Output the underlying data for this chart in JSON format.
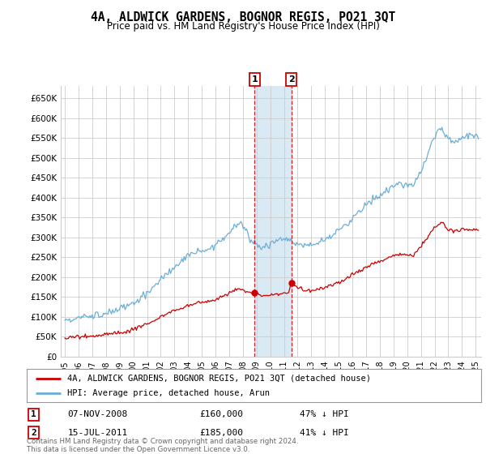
{
  "title": "4A, ALDWICK GARDENS, BOGNOR REGIS, PO21 3QT",
  "subtitle": "Price paid vs. HM Land Registry's House Price Index (HPI)",
  "ylabel_ticks": [
    "£0",
    "£50K",
    "£100K",
    "£150K",
    "£200K",
    "£250K",
    "£300K",
    "£350K",
    "£400K",
    "£450K",
    "£500K",
    "£550K",
    "£600K",
    "£650K"
  ],
  "ylim": [
    0,
    680000
  ],
  "xlim_start": 1994.7,
  "xlim_end": 2025.4,
  "transaction1": {
    "date": "07-NOV-2008",
    "price": 160000,
    "label": "1",
    "x": 2008.85,
    "pct": "47%"
  },
  "transaction2": {
    "date": "15-JUL-2011",
    "price": 185000,
    "label": "2",
    "x": 2011.54,
    "pct": "41%"
  },
  "hpi_color": "#6baed6",
  "price_color": "#cc0000",
  "shade_color": "#daeaf5",
  "box_color": "#cc0000",
  "grid_color": "#cccccc",
  "background_color": "#ffffff",
  "footer": "Contains HM Land Registry data © Crown copyright and database right 2024.\nThis data is licensed under the Open Government Licence v3.0.",
  "legend_line1": "4A, ALDWICK GARDENS, BOGNOR REGIS, PO21 3QT (detached house)",
  "legend_line2": "HPI: Average price, detached house, Arun"
}
